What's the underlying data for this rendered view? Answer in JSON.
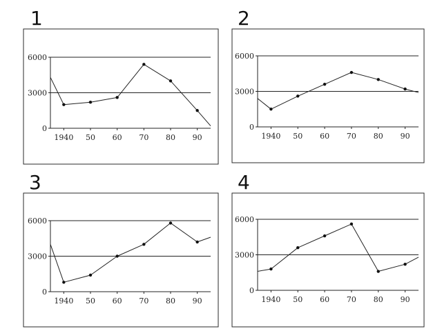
{
  "chart_data": [
    {
      "type": "line",
      "panel_label": "1",
      "x": [
        1935,
        1940,
        1950,
        1960,
        1970,
        1980,
        1990,
        1995
      ],
      "series": [
        {
          "values": [
            4300,
            2000,
            2200,
            2600,
            5400,
            4000,
            1500,
            200
          ]
        }
      ],
      "marked_x": [
        1940,
        1950,
        1960,
        1970,
        1980,
        1990
      ],
      "x_tick_labels": [
        "1940",
        "50",
        "60",
        "70",
        "80",
        "90"
      ],
      "y_tick_labels": [
        "0",
        "3000",
        "6000"
      ],
      "ylim": [
        0,
        6000
      ],
      "reference_lines": [
        3000,
        6000
      ]
    },
    {
      "type": "line",
      "panel_label": "2",
      "x": [
        1935,
        1940,
        1950,
        1960,
        1970,
        1980,
        1990,
        1995
      ],
      "series": [
        {
          "values": [
            2400,
            1500,
            2600,
            3600,
            4600,
            4000,
            3200,
            2900
          ]
        }
      ],
      "marked_x": [
        1940,
        1950,
        1960,
        1970,
        1980,
        1990
      ],
      "x_tick_labels": [
        "1940",
        "50",
        "60",
        "70",
        "80",
        "90"
      ],
      "y_tick_labels": [
        "0",
        "3000",
        "6000"
      ],
      "ylim": [
        0,
        6000
      ],
      "reference_lines": [
        3000,
        6000
      ]
    },
    {
      "type": "line",
      "panel_label": "3",
      "x": [
        1935,
        1940,
        1950,
        1960,
        1970,
        1980,
        1990,
        1995
      ],
      "series": [
        {
          "values": [
            4000,
            800,
            1400,
            3000,
            4000,
            5800,
            4200,
            4600
          ]
        }
      ],
      "marked_x": [
        1940,
        1950,
        1960,
        1970,
        1980,
        1990
      ],
      "x_tick_labels": [
        "1940",
        "50",
        "60",
        "70",
        "80",
        "90"
      ],
      "y_tick_labels": [
        "0",
        "3000",
        "6000"
      ],
      "ylim": [
        0,
        6000
      ],
      "reference_lines": [
        3000,
        6000
      ]
    },
    {
      "type": "line",
      "panel_label": "4",
      "x": [
        1935,
        1940,
        1950,
        1960,
        1970,
        1980,
        1990,
        1995
      ],
      "series": [
        {
          "values": [
            1600,
            1800,
            3600,
            4600,
            5600,
            1600,
            2200,
            2800
          ]
        }
      ],
      "marked_x": [
        1940,
        1950,
        1960,
        1970,
        1980,
        1990
      ],
      "x_tick_labels": [
        "1940",
        "50",
        "60",
        "70",
        "80",
        "90"
      ],
      "y_tick_labels": [
        "0",
        "3000",
        "6000"
      ],
      "ylim": [
        0,
        6000
      ],
      "reference_lines": [
        3000,
        6000
      ]
    }
  ]
}
